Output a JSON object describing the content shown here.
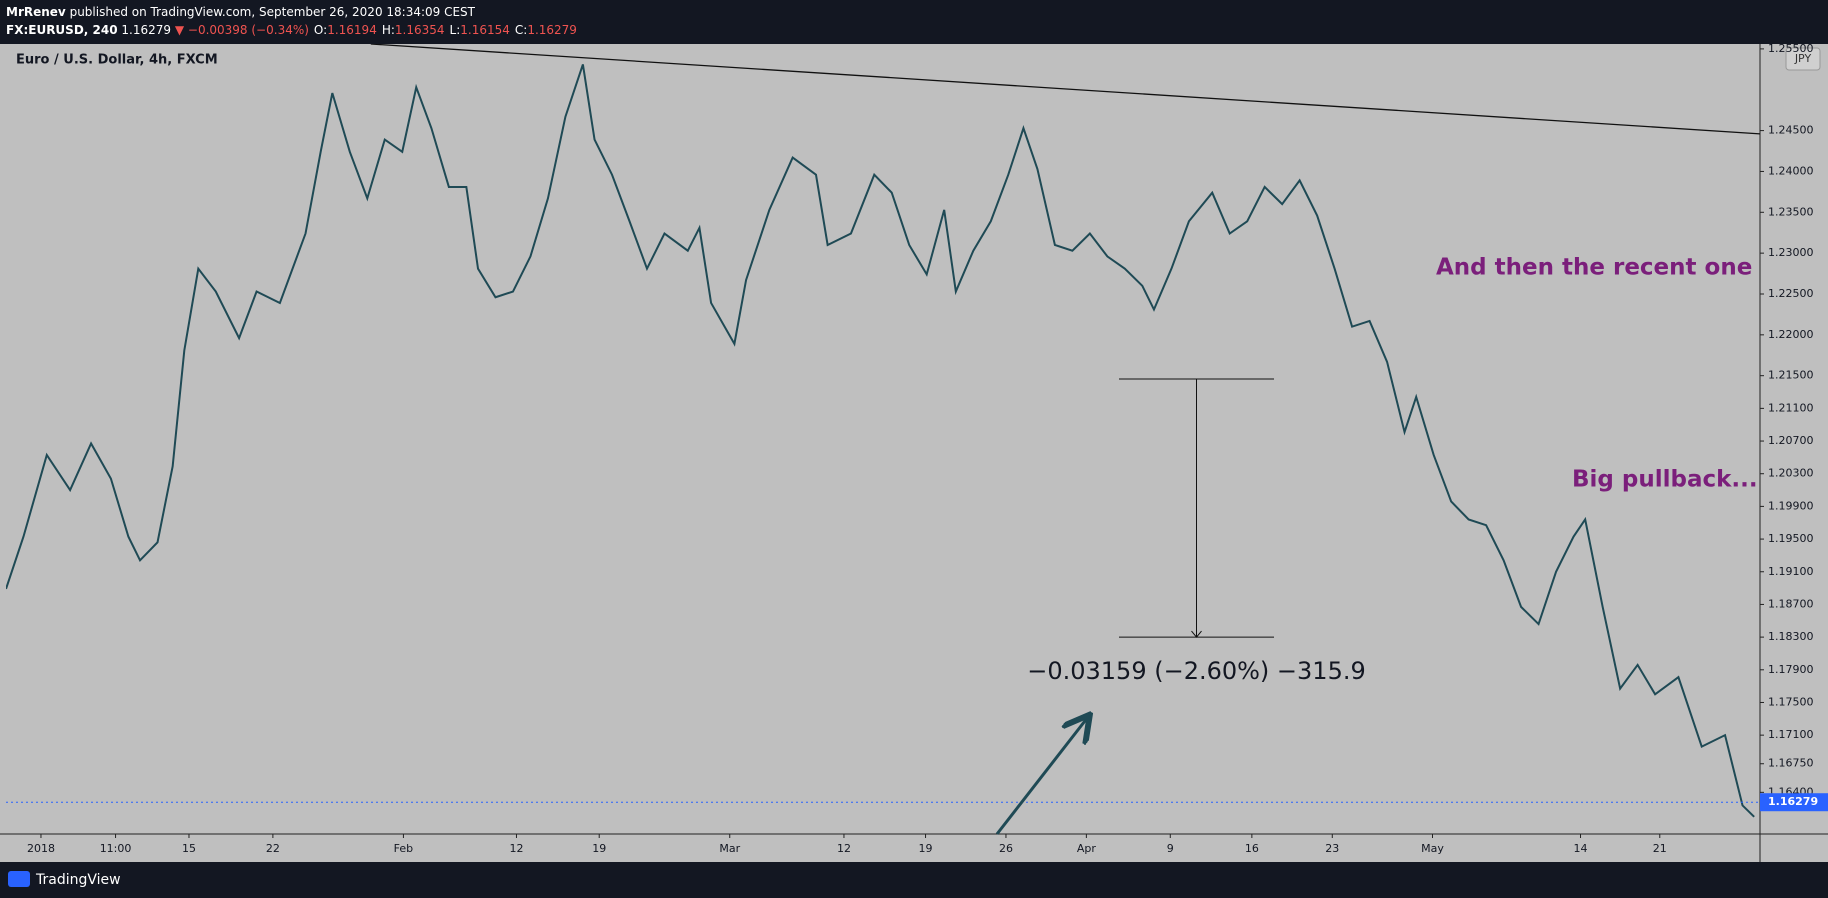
{
  "header": {
    "author": "MrRenev",
    "published": "published on TradingView.com, September 26, 2020 18:34:09 CEST",
    "symbol": "FX:EURUSD, 240",
    "change": "▼ −0.00398 (−0.34%)",
    "ohlc": [
      {
        "label": "O:",
        "value": 1.16194
      },
      {
        "label": "H:",
        "value": 1.16354
      },
      {
        "label": "L:",
        "value": 1.16154
      },
      {
        "label": "C:",
        "value": 1.16279
      }
    ]
  },
  "footer": {
    "brand": "TradingView"
  },
  "chart_data": {
    "type": "line",
    "title": "Euro / U.S. Dollar, 4h, FXCM",
    "currency_button": "JPY",
    "x": [
      5,
      20,
      40,
      60,
      78,
      95,
      110,
      120,
      135,
      148,
      158,
      170,
      185,
      205,
      220,
      240,
      262,
      275,
      285,
      300,
      315,
      330,
      345,
      357,
      370,
      385,
      400,
      410,
      425,
      440,
      455,
      470,
      485,
      500,
      510,
      525,
      540,
      555,
      570,
      590,
      600,
      610,
      630,
      640,
      660,
      680,
      700,
      710,
      730,
      750,
      765,
      780,
      795,
      810,
      820,
      835,
      850,
      865,
      878,
      890,
      905,
      920,
      935,
      950,
      965,
      980,
      990,
      1005,
      1020,
      1040,
      1055,
      1070,
      1085,
      1100,
      1115,
      1130,
      1145,
      1160,
      1175,
      1190,
      1205,
      1215,
      1230,
      1245,
      1260,
      1275,
      1290,
      1305,
      1320,
      1335,
      1350,
      1360,
      1375,
      1390,
      1405,
      1420,
      1440,
      1460,
      1480,
      1495,
      1505
    ],
    "series": [
      {
        "name": "EURUSD",
        "color": "#1f4a55",
        "values": [
          1.1889,
          1.1953,
          1.2053,
          1.201,
          1.2067,
          1.2024,
          1.1953,
          1.1924,
          1.1946,
          1.2039,
          1.2181,
          1.2281,
          1.2253,
          1.2196,
          1.2253,
          1.2239,
          1.2324,
          1.2424,
          1.2496,
          1.2424,
          1.2367,
          1.2439,
          1.2424,
          1.2503,
          1.2453,
          1.2381,
          1.2381,
          1.2281,
          1.2246,
          1.2253,
          1.2296,
          1.2367,
          1.2467,
          1.2531,
          1.2439,
          1.2396,
          1.2339,
          1.2281,
          1.2324,
          1.2303,
          1.2331,
          1.2239,
          1.2189,
          1.2267,
          1.2353,
          1.2417,
          1.2396,
          1.231,
          1.2324,
          1.2396,
          1.2374,
          1.231,
          1.2274,
          1.2353,
          1.2253,
          1.2303,
          1.2339,
          1.2396,
          1.2453,
          1.2403,
          1.231,
          1.2303,
          1.2324,
          1.2296,
          1.2281,
          1.226,
          1.2231,
          1.2281,
          1.2339,
          1.2374,
          1.2324,
          1.2339,
          1.2381,
          1.236,
          1.2389,
          1.2346,
          1.2281,
          1.221,
          1.2217,
          1.2167,
          1.2081,
          1.2124,
          1.2053,
          1.1996,
          1.1974,
          1.1967,
          1.1924,
          1.1867,
          1.1846,
          1.191,
          1.1953,
          1.1974,
          1.1867,
          1.1767,
          1.1796,
          1.176,
          1.1781,
          1.1696,
          1.171,
          1.1624,
          1.161
        ]
      }
    ],
    "last_price": 1.16279,
    "xlim": [
      5,
      1510
    ],
    "ylim": [
      1.1589,
      1.2556
    ],
    "xticks": [
      {
        "value": 35,
        "label": "2018"
      },
      {
        "value": 99,
        "label": "11:00"
      },
      {
        "value": 162,
        "label": "15"
      },
      {
        "value": 234,
        "label": "22"
      },
      {
        "value": 346,
        "label": "Feb"
      },
      {
        "value": 443,
        "label": "12"
      },
      {
        "value": 514,
        "label": "19"
      },
      {
        "value": 626,
        "label": "Mar"
      },
      {
        "value": 724,
        "label": "12"
      },
      {
        "value": 794,
        "label": "19"
      },
      {
        "value": 863,
        "label": "26"
      },
      {
        "value": 932,
        "label": "Apr"
      },
      {
        "value": 1004,
        "label": "9"
      },
      {
        "value": 1074,
        "label": "16"
      },
      {
        "value": 1143,
        "label": "23"
      },
      {
        "value": 1229,
        "label": "May"
      },
      {
        "value": 1356,
        "label": "14"
      },
      {
        "value": 1424,
        "label": "21"
      }
    ],
    "yticks": [
      {
        "value": 1.255,
        "label": "1.25500"
      },
      {
        "value": 1.245,
        "label": "1.24500"
      },
      {
        "value": 1.24,
        "label": "1.24000"
      },
      {
        "value": 1.235,
        "label": "1.23500"
      },
      {
        "value": 1.23,
        "label": "1.23000"
      },
      {
        "value": 1.225,
        "label": "1.22500"
      },
      {
        "value": 1.22,
        "label": "1.22000"
      },
      {
        "value": 1.215,
        "label": "1.21500"
      },
      {
        "value": 1.211,
        "label": "1.21100"
      },
      {
        "value": 1.207,
        "label": "1.20700"
      },
      {
        "value": 1.203,
        "label": "1.20300"
      },
      {
        "value": 1.199,
        "label": "1.19900"
      },
      {
        "value": 1.195,
        "label": "1.19500"
      },
      {
        "value": 1.191,
        "label": "1.19100"
      },
      {
        "value": 1.187,
        "label": "1.18700"
      },
      {
        "value": 1.183,
        "label": "1.18300"
      },
      {
        "value": 1.179,
        "label": "1.17900"
      },
      {
        "value": 1.175,
        "label": "1.17500"
      },
      {
        "value": 1.171,
        "label": "1.17100"
      },
      {
        "value": 1.1675,
        "label": "1.16750"
      },
      {
        "value": 1.164,
        "label": "1.16400"
      }
    ],
    "trend_line": {
      "x": [
        318,
        1510
      ],
      "y": [
        1.2556,
        1.2446
      ]
    },
    "measure": {
      "x": [
        960,
        1093
      ],
      "top": 1.2146,
      "bottom": 1.183,
      "label": "−0.03159 (−2.60%) −315.9"
    },
    "annotations": [
      "And then the recent one",
      "Big pullback..."
    ]
  }
}
